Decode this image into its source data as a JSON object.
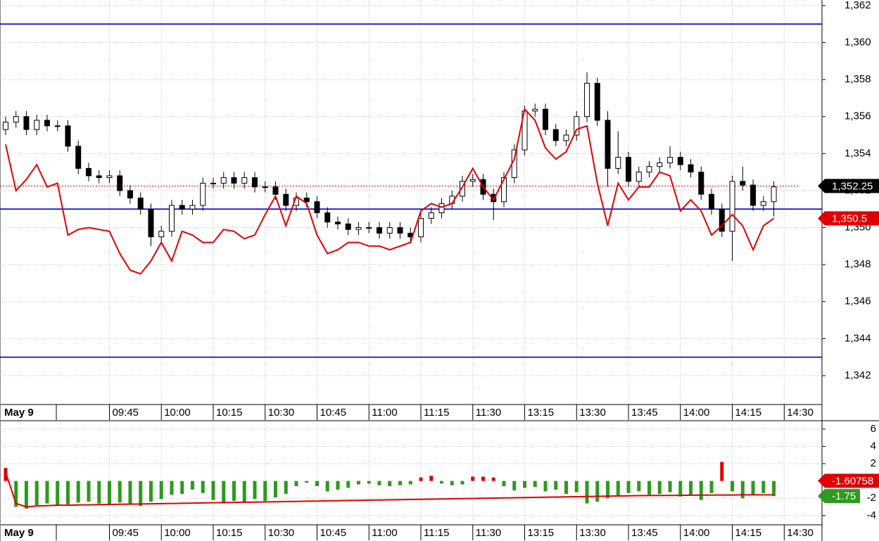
{
  "chart_data": [
    {
      "type": "candlestick",
      "open": [
        1355.3,
        1355.7,
        1356.0,
        1355.3,
        1355.8,
        1355.5,
        1355.5,
        1354.4,
        1353.2,
        1352.8,
        1352.7,
        1352.8,
        1352.0,
        1351.6,
        1351.0,
        1349.5,
        1349.8,
        1351.2,
        1351.0,
        1351.2,
        1352.4,
        1352.4,
        1352.7,
        1352.4,
        1352.7,
        1352.2,
        1352.2,
        1351.8,
        1351.2,
        1351.6,
        1351.4,
        1350.8,
        1350.3,
        1350.2,
        1349.9,
        1350.0,
        1350.0,
        1349.7,
        1350.0,
        1349.7,
        1349.5,
        1350.5,
        1350.8,
        1351.3,
        1351.7,
        1352.5,
        1352.6,
        1351.8,
        1351.4,
        1352.7,
        1354.2,
        1356.3,
        1356.4,
        1355.3,
        1354.7,
        1355.0,
        1356.0,
        1357.8,
        1355.8,
        1353.2,
        1353.8,
        1352.5,
        1353.0,
        1353.3,
        1353.5,
        1353.8,
        1353.4,
        1353.0,
        1351.8,
        1351.0,
        1349.8,
        1352.5,
        1352.3,
        1351.2,
        1351.4
      ],
      "high": [
        1356.0,
        1356.3,
        1356.3,
        1356.1,
        1356.1,
        1355.8,
        1355.8,
        1354.7,
        1353.5,
        1353.1,
        1353.1,
        1353.1,
        1352.3,
        1351.9,
        1351.3,
        1350.1,
        1351.5,
        1351.5,
        1351.5,
        1352.7,
        1352.7,
        1353.0,
        1353.0,
        1353.0,
        1353.0,
        1352.5,
        1352.5,
        1352.1,
        1351.9,
        1351.9,
        1351.7,
        1351.1,
        1350.6,
        1350.5,
        1350.3,
        1350.3,
        1350.3,
        1350.3,
        1350.3,
        1350.0,
        1350.8,
        1351.1,
        1351.6,
        1352.0,
        1352.8,
        1352.9,
        1352.9,
        1352.1,
        1353.0,
        1354.5,
        1356.6,
        1356.7,
        1356.7,
        1355.6,
        1355.3,
        1356.3,
        1358.4,
        1358.1,
        1356.3,
        1355.2,
        1354.1,
        1353.3,
        1353.6,
        1353.8,
        1354.4,
        1354.1,
        1353.7,
        1353.3,
        1352.1,
        1351.3,
        1352.8,
        1353.3,
        1352.6,
        1351.7,
        1352.5
      ],
      "low": [
        1355.0,
        1355.4,
        1355.0,
        1355.0,
        1355.2,
        1355.2,
        1354.1,
        1352.9,
        1352.5,
        1352.4,
        1352.4,
        1351.7,
        1351.3,
        1350.7,
        1349.0,
        1349.2,
        1349.5,
        1350.7,
        1350.7,
        1350.9,
        1352.1,
        1352.1,
        1352.1,
        1352.1,
        1351.9,
        1351.9,
        1351.5,
        1350.9,
        1350.9,
        1351.1,
        1350.5,
        1350.0,
        1349.9,
        1349.6,
        1349.6,
        1349.7,
        1349.4,
        1349.4,
        1349.4,
        1349.2,
        1349.2,
        1350.2,
        1350.5,
        1351.0,
        1351.4,
        1352.2,
        1351.5,
        1350.4,
        1351.1,
        1352.4,
        1353.9,
        1356.0,
        1355.0,
        1354.4,
        1354.4,
        1354.7,
        1355.7,
        1355.5,
        1352.2,
        1352.9,
        1352.2,
        1352.2,
        1352.7,
        1353.0,
        1353.2,
        1353.1,
        1352.7,
        1351.5,
        1350.7,
        1349.5,
        1348.2,
        1352.0,
        1350.9,
        1350.9,
        1350.6
      ],
      "close": [
        1355.7,
        1356.0,
        1355.3,
        1355.8,
        1355.5,
        1355.5,
        1354.4,
        1353.2,
        1352.8,
        1352.7,
        1352.8,
        1352.0,
        1351.6,
        1351.0,
        1349.5,
        1349.8,
        1351.2,
        1351.0,
        1351.2,
        1352.4,
        1352.4,
        1352.7,
        1352.4,
        1352.7,
        1352.2,
        1352.2,
        1351.8,
        1351.2,
        1351.6,
        1351.4,
        1350.8,
        1350.3,
        1350.2,
        1349.9,
        1350.0,
        1350.0,
        1349.7,
        1350.0,
        1349.7,
        1349.5,
        1350.5,
        1350.8,
        1351.3,
        1351.7,
        1352.5,
        1352.6,
        1351.8,
        1351.4,
        1352.7,
        1354.2,
        1356.3,
        1356.4,
        1355.3,
        1354.7,
        1355.0,
        1356.0,
        1357.8,
        1355.8,
        1353.2,
        1353.8,
        1352.5,
        1353.0,
        1353.3,
        1353.5,
        1353.8,
        1353.4,
        1353.0,
        1351.8,
        1351.0,
        1349.8,
        1352.5,
        1352.3,
        1351.2,
        1351.4,
        1352.2
      ],
      "up_color": "#ffffff",
      "down_color": "#000000",
      "indicator": {
        "color": "#e00000",
        "values": [
          1354.5,
          1352.0,
          1352.6,
          1353.4,
          1352.2,
          1352.4,
          1349.6,
          1349.9,
          1350.0,
          1349.9,
          1349.8,
          1348.6,
          1347.7,
          1347.5,
          1348.2,
          1349.2,
          1348.2,
          1349.8,
          1349.6,
          1349.2,
          1349.2,
          1349.9,
          1349.8,
          1349.4,
          1349.6,
          1350.7,
          1351.7,
          1350.1,
          1351.7,
          1351.3,
          1349.6,
          1348.6,
          1348.8,
          1349.2,
          1349.2,
          1349.0,
          1349.0,
          1348.8,
          1349.0,
          1349.2,
          1350.9,
          1351.3,
          1351.1,
          1351.3,
          1352.2,
          1353.2,
          1352.2,
          1351.5,
          1352.6,
          1353.7,
          1356.4,
          1355.8,
          1354.3,
          1353.7,
          1354.1,
          1355.3,
          1355.5,
          1352.4,
          1350.1,
          1352.4,
          1351.5,
          1352.2,
          1352.2,
          1353.0,
          1352.8,
          1350.9,
          1351.5,
          1350.9,
          1349.6,
          1350.1,
          1350.7,
          1350.1,
          1348.8,
          1350.1,
          1350.5
        ]
      },
      "levels": {
        "color": "#0000c8",
        "values": [
          1361,
          1351,
          1343
        ]
      },
      "last_price": {
        "value": 1352.25,
        "label": "1,352.25"
      },
      "indicator_last": {
        "value": 1350.5,
        "label": "1,350.5"
      },
      "ylim": [
        1340.44,
        1362.3
      ],
      "yticks": [
        {
          "value": 1342,
          "label": "1,342"
        },
        {
          "value": 1344,
          "label": "1,344"
        },
        {
          "value": 1346,
          "label": "1,346"
        },
        {
          "value": 1348,
          "label": "1,348"
        },
        {
          "value": 1350,
          "label": "1,350"
        },
        {
          "value": 1352,
          "label": "1,352"
        },
        {
          "value": 1354,
          "label": "1,354"
        },
        {
          "value": 1356,
          "label": "1,356"
        },
        {
          "value": 1358,
          "label": "1,358"
        },
        {
          "value": 1360,
          "label": "1,360"
        },
        {
          "value": 1362,
          "label": "1,362"
        }
      ],
      "xlim": [
        -0.54,
        78.64
      ],
      "xticks": [
        {
          "value": 0,
          "label": "May 9"
        },
        {
          "value": 10,
          "label": "09:45"
        },
        {
          "value": 15,
          "label": "10:00"
        },
        {
          "value": 20,
          "label": "10:15"
        },
        {
          "value": 25,
          "label": "10:30"
        },
        {
          "value": 30,
          "label": "10:45"
        },
        {
          "value": 35,
          "label": "11:00"
        },
        {
          "value": 40,
          "label": "11:15"
        },
        {
          "value": 45,
          "label": "11:30"
        },
        {
          "value": 50,
          "label": "13:15"
        },
        {
          "value": 55,
          "label": "13:30"
        },
        {
          "value": 60,
          "label": "13:45"
        },
        {
          "value": 65,
          "label": "14:00"
        },
        {
          "value": 70,
          "label": "14:15"
        },
        {
          "value": 75,
          "label": "14:30"
        }
      ],
      "grid": true
    },
    {
      "type": "bar",
      "values": [
        1.5,
        -3.0,
        -3.2,
        -2.8,
        -2.6,
        -2.9,
        -2.7,
        -2.5,
        -2.4,
        -2.6,
        -2.8,
        -2.5,
        -2.7,
        -2.9,
        -2.4,
        -2.1,
        -1.6,
        -1.5,
        -1.0,
        -1.4,
        -2.2,
        -2.6,
        -2.3,
        -2.4,
        -2.1,
        -2.3,
        -1.9,
        -1.5,
        -0.6,
        -0.2,
        -0.6,
        -1.2,
        -1.0,
        -0.8,
        -0.4,
        -0.3,
        -0.5,
        -0.6,
        -0.5,
        -0.4,
        0.4,
        0.6,
        -0.3,
        -0.5,
        -0.4,
        0.5,
        0.5,
        0.4,
        -0.6,
        -1.1,
        -0.8,
        -0.7,
        -1.2,
        -1.0,
        -1.5,
        -1.3,
        -2.6,
        -2.4,
        -2.0,
        -1.7,
        -1.4,
        -1.2,
        -1.6,
        -1.5,
        -1.3,
        -1.8,
        -1.6,
        -2.2,
        -1.4,
        2.2,
        -1.2,
        -2.0,
        -1.6,
        -1.4,
        -1.75
      ],
      "up_color": "#e00000",
      "down_color": "#2e9a1e",
      "line": {
        "color": "#e00000",
        "values": [
          1.0,
          -2.6,
          -3.0,
          -2.9,
          -2.85,
          -2.8,
          -2.8,
          -2.78,
          -2.76,
          -2.74,
          -2.72,
          -2.7,
          -2.68,
          -2.66,
          -2.64,
          -2.62,
          -2.6,
          -2.58,
          -2.56,
          -2.54,
          -2.52,
          -2.5,
          -2.48,
          -2.46,
          -2.44,
          -2.42,
          -2.4,
          -2.38,
          -2.36,
          -2.34,
          -2.32,
          -2.3,
          -2.28,
          -2.26,
          -2.24,
          -2.22,
          -2.2,
          -2.18,
          -2.16,
          -2.14,
          -2.12,
          -2.1,
          -2.08,
          -2.06,
          -2.04,
          -2.02,
          -2.0,
          -1.98,
          -1.96,
          -1.94,
          -1.92,
          -1.9,
          -1.88,
          -1.86,
          -1.84,
          -1.82,
          -1.8,
          -1.78,
          -1.76,
          -1.74,
          -1.72,
          -1.7,
          -1.69,
          -1.68,
          -1.67,
          -1.66,
          -1.65,
          -1.64,
          -1.63,
          -1.62,
          -1.62,
          -1.61,
          -1.61,
          -1.61,
          -1.60758
        ]
      },
      "line_last": -1.60758,
      "bar_last": -1.75,
      "ylim": [
        -5.07,
        6.8
      ],
      "yticks": [
        -4,
        -2,
        2,
        4,
        6
      ],
      "xlim": [
        -0.54,
        78.64
      ],
      "xticks": [
        {
          "value": 0,
          "label": "May 9"
        },
        {
          "value": 10,
          "label": "09:45"
        },
        {
          "value": 15,
          "label": "10:00"
        },
        {
          "value": 20,
          "label": "10:15"
        },
        {
          "value": 25,
          "label": "10:30"
        },
        {
          "value": 30,
          "label": "10:45"
        },
        {
          "value": 35,
          "label": "11:00"
        },
        {
          "value": 40,
          "label": "11:15"
        },
        {
          "value": 45,
          "label": "11:30"
        },
        {
          "value": 50,
          "label": "13:15"
        },
        {
          "value": 55,
          "label": "13:30"
        },
        {
          "value": 60,
          "label": "13:45"
        },
        {
          "value": 65,
          "label": "14:00"
        },
        {
          "value": 70,
          "label": "14:15"
        },
        {
          "value": 75,
          "label": "14:30"
        }
      ],
      "grid": true
    }
  ]
}
